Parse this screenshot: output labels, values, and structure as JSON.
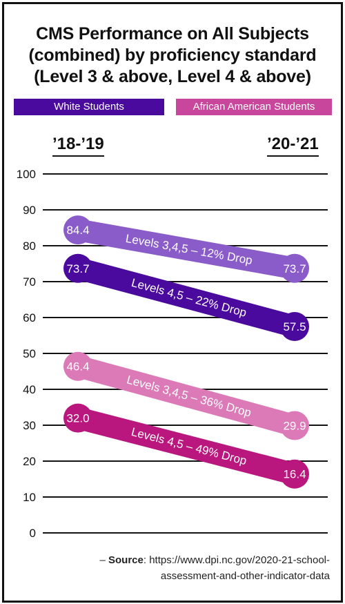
{
  "title_lines": [
    "CMS Performance on All Subjects",
    "(combined) by proficiency standard",
    "(Level 3 & above, Level 4 & above)"
  ],
  "legend": {
    "white": "White Students",
    "african_american": "African American Students"
  },
  "periods": {
    "start": "’18-’19",
    "end": "’20-’21"
  },
  "source": {
    "prefix": "– ",
    "label": "Source",
    "text_line1": ": https://www.dpi.nc.gov/2020-21-school-",
    "text_line2": "assessment-and-other-indicator-data"
  },
  "colors": {
    "white_l345": "#8a5cc9",
    "white_l45": "#4a0a9e",
    "aa_l345": "#dc7ab8",
    "aa_l45": "#b9177e"
  },
  "chart_data": {
    "type": "line",
    "x": [
      "’18-’19",
      "’20-’21"
    ],
    "ylim": [
      0,
      100
    ],
    "yticks": [
      0,
      10,
      20,
      30,
      40,
      50,
      60,
      70,
      80,
      90,
      100
    ],
    "grid": true,
    "series": [
      {
        "name": "Levels 3,4,5 – 12% Drop",
        "group": "White Students",
        "values": [
          84.4,
          73.7
        ],
        "color": "#8a5cc9"
      },
      {
        "name": "Levels 4,5 – 22% Drop",
        "group": "White Students",
        "values": [
          73.7,
          57.5
        ],
        "color": "#4a0a9e"
      },
      {
        "name": "Levels 3,4,5 – 36% Drop",
        "group": "African American Students",
        "values": [
          46.4,
          29.9
        ],
        "color": "#dc7ab8"
      },
      {
        "name": "Levels 4,5 – 49% Drop",
        "group": "African American Students",
        "values": [
          32.0,
          16.4
        ],
        "color": "#b9177e"
      }
    ],
    "value_labels": [
      [
        "84.4",
        "73.7"
      ],
      [
        "73.7",
        "57.5"
      ],
      [
        "46.4",
        "29.9"
      ],
      [
        "32.0",
        "16.4"
      ]
    ]
  }
}
